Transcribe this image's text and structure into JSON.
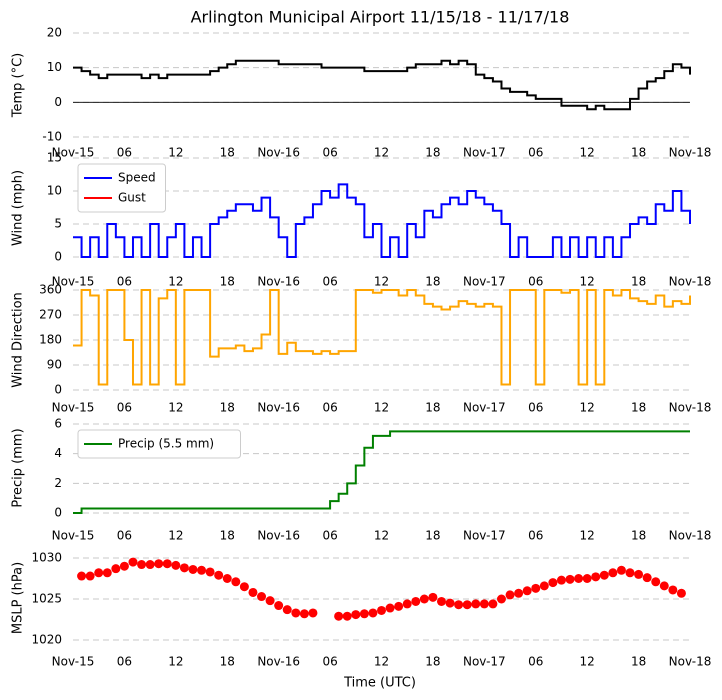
{
  "chart_data": [
    {
      "type": "line",
      "title": "Arlington Municipal Airport 11/15/18 - 11/17/18",
      "ylabel": "Temp (°C)",
      "drawstyle": "steps",
      "grid": true,
      "zero_line": true,
      "x": [
        0,
        1,
        2,
        3,
        4,
        5,
        6,
        7,
        8,
        9,
        10,
        11,
        12,
        13,
        14,
        15,
        16,
        17,
        18,
        19,
        20,
        21,
        22,
        23,
        24,
        25,
        26,
        27,
        28,
        29,
        30,
        31,
        32,
        33,
        34,
        35,
        36,
        37,
        38,
        39,
        40,
        41,
        42,
        43,
        44,
        45,
        46,
        47,
        48,
        49,
        50,
        51,
        52,
        53,
        54,
        55,
        56,
        57,
        58,
        59,
        60,
        61,
        62,
        63,
        64,
        65,
        66,
        67,
        68,
        69,
        70,
        71,
        72
      ],
      "series": [
        {
          "name": "Temp",
          "color": "#000000",
          "values": [
            10,
            9,
            8,
            7,
            8,
            8,
            8,
            8,
            7,
            8,
            7,
            8,
            8,
            8,
            8,
            8,
            9,
            10,
            11,
            12,
            12,
            12,
            12,
            12,
            11,
            11,
            11,
            11,
            11,
            10,
            10,
            10,
            10,
            10,
            9,
            9,
            9,
            9,
            9,
            10,
            11,
            11,
            11,
            12,
            11,
            12,
            11,
            8,
            7,
            6,
            4,
            3,
            3,
            2,
            1,
            1,
            1,
            -1,
            -1,
            -1,
            -2,
            -1,
            -2,
            -2,
            -2,
            1,
            4,
            6,
            7,
            9,
            11,
            10,
            8
          ]
        }
      ],
      "xlim": [
        0,
        72
      ],
      "xticks": [
        {
          "value": 0,
          "label": "Nov-15"
        },
        {
          "value": 6,
          "label": "06"
        },
        {
          "value": 12,
          "label": "12"
        },
        {
          "value": 18,
          "label": "18"
        },
        {
          "value": 24,
          "label": "Nov-16"
        },
        {
          "value": 30,
          "label": "06"
        },
        {
          "value": 36,
          "label": "12"
        },
        {
          "value": 42,
          "label": "18"
        },
        {
          "value": 48,
          "label": "Nov-17"
        },
        {
          "value": 54,
          "label": "06"
        },
        {
          "value": 60,
          "label": "12"
        },
        {
          "value": 66,
          "label": "18"
        },
        {
          "value": 72,
          "label": "Nov-18"
        }
      ],
      "ylim": [
        -10,
        20
      ],
      "yticks": [
        -10,
        0,
        10,
        20
      ]
    },
    {
      "type": "line",
      "ylabel": "Wind (mph)",
      "drawstyle": "steps",
      "grid": true,
      "legend": "upper left",
      "x": [
        0,
        1,
        2,
        3,
        4,
        5,
        6,
        7,
        8,
        9,
        10,
        11,
        12,
        13,
        14,
        15,
        16,
        17,
        18,
        19,
        20,
        21,
        22,
        23,
        24,
        25,
        26,
        27,
        28,
        29,
        30,
        31,
        32,
        33,
        34,
        35,
        36,
        37,
        38,
        39,
        40,
        41,
        42,
        43,
        44,
        45,
        46,
        47,
        48,
        49,
        50,
        51,
        52,
        53,
        54,
        55,
        56,
        57,
        58,
        59,
        60,
        61,
        62,
        63,
        64,
        65,
        66,
        67,
        68,
        69,
        70,
        71,
        72
      ],
      "series": [
        {
          "name": "Speed",
          "color": "#0000ff",
          "values": [
            3,
            0,
            3,
            0,
            5,
            3,
            0,
            3,
            0,
            5,
            0,
            3,
            5,
            0,
            3,
            0,
            5,
            6,
            7,
            8,
            8,
            7,
            9,
            6,
            3,
            0,
            5,
            6,
            8,
            10,
            9,
            11,
            9,
            8,
            3,
            5,
            0,
            3,
            0,
            5,
            3,
            7,
            6,
            8,
            9,
            8,
            10,
            9,
            8,
            7,
            5,
            0,
            3,
            0,
            0,
            0,
            3,
            0,
            3,
            0,
            3,
            0,
            3,
            0,
            3,
            5,
            6,
            5,
            8,
            7,
            10,
            7,
            5
          ]
        },
        {
          "name": "Gust",
          "color": "#ff0000",
          "values": [
            null,
            null,
            null,
            null,
            null,
            null,
            null,
            null,
            null,
            null,
            null,
            null,
            null,
            null,
            null,
            null,
            null,
            null,
            null,
            null,
            null,
            null,
            null,
            null,
            null,
            null,
            null,
            null,
            null,
            null,
            null,
            null,
            null,
            null,
            null,
            null,
            null,
            null,
            null,
            null,
            null,
            null,
            null,
            null,
            null,
            null,
            null,
            null,
            null,
            null,
            null,
            null,
            null,
            null,
            null,
            null,
            null,
            null,
            null,
            null,
            null,
            null,
            null,
            null,
            null,
            null,
            null,
            null,
            null,
            null,
            null,
            null,
            null
          ]
        }
      ],
      "xlim": [
        0,
        72
      ],
      "xticks": [
        {
          "value": 0,
          "label": "Nov-15"
        },
        {
          "value": 6,
          "label": "06"
        },
        {
          "value": 12,
          "label": "12"
        },
        {
          "value": 18,
          "label": "18"
        },
        {
          "value": 24,
          "label": "Nov-16"
        },
        {
          "value": 30,
          "label": "06"
        },
        {
          "value": 36,
          "label": "12"
        },
        {
          "value": 42,
          "label": "18"
        },
        {
          "value": 48,
          "label": "Nov-17"
        },
        {
          "value": 54,
          "label": "06"
        },
        {
          "value": 60,
          "label": "12"
        },
        {
          "value": 66,
          "label": "18"
        },
        {
          "value": 72,
          "label": "Nov-18"
        }
      ],
      "ylim": [
        0,
        15
      ],
      "yticks": [
        0,
        5,
        10,
        15
      ]
    },
    {
      "type": "line",
      "ylabel": "Wind Direction",
      "drawstyle": "steps",
      "grid": true,
      "x": [
        0,
        1,
        2,
        3,
        4,
        5,
        6,
        7,
        8,
        9,
        10,
        11,
        12,
        13,
        14,
        15,
        16,
        17,
        18,
        19,
        20,
        21,
        22,
        23,
        24,
        25,
        26,
        27,
        28,
        29,
        30,
        31,
        32,
        33,
        34,
        35,
        36,
        37,
        38,
        39,
        40,
        41,
        42,
        43,
        44,
        45,
        46,
        47,
        48,
        49,
        50,
        51,
        52,
        53,
        54,
        55,
        56,
        57,
        58,
        59,
        60,
        61,
        62,
        63,
        64,
        65,
        66,
        67,
        68,
        69,
        70,
        71,
        72
      ],
      "series": [
        {
          "name": "Direction",
          "color": "#ffa500",
          "values": [
            160,
            360,
            340,
            20,
            360,
            360,
            180,
            20,
            360,
            20,
            330,
            360,
            20,
            360,
            360,
            360,
            120,
            150,
            150,
            160,
            140,
            150,
            200,
            360,
            130,
            170,
            140,
            140,
            130,
            140,
            130,
            140,
            140,
            360,
            360,
            350,
            360,
            360,
            340,
            360,
            340,
            310,
            300,
            290,
            300,
            320,
            310,
            300,
            310,
            300,
            20,
            360,
            360,
            360,
            20,
            360,
            360,
            350,
            360,
            20,
            360,
            20,
            360,
            340,
            360,
            330,
            320,
            310,
            340,
            300,
            320,
            310,
            340
          ]
        }
      ],
      "xlim": [
        0,
        72
      ],
      "xticks": [
        {
          "value": 0,
          "label": "Nov-15"
        },
        {
          "value": 6,
          "label": "06"
        },
        {
          "value": 12,
          "label": "12"
        },
        {
          "value": 18,
          "label": "18"
        },
        {
          "value": 24,
          "label": "Nov-16"
        },
        {
          "value": 30,
          "label": "06"
        },
        {
          "value": 36,
          "label": "12"
        },
        {
          "value": 42,
          "label": "18"
        },
        {
          "value": 48,
          "label": "Nov-17"
        },
        {
          "value": 54,
          "label": "06"
        },
        {
          "value": 60,
          "label": "12"
        },
        {
          "value": 66,
          "label": "18"
        },
        {
          "value": 72,
          "label": "Nov-18"
        }
      ],
      "ylim": [
        0,
        360
      ],
      "yticks": [
        0,
        90,
        180,
        270,
        360
      ]
    },
    {
      "type": "line",
      "ylabel": "Precip (mm)",
      "drawstyle": "steps",
      "grid": true,
      "legend": "upper left",
      "x": [
        0,
        1,
        2,
        3,
        4,
        5,
        6,
        7,
        8,
        9,
        10,
        11,
        12,
        13,
        14,
        15,
        16,
        17,
        18,
        19,
        20,
        21,
        22,
        23,
        24,
        25,
        26,
        27,
        28,
        29,
        30,
        31,
        32,
        33,
        34,
        35,
        36,
        37,
        38,
        39,
        40,
        41,
        42,
        43,
        44,
        45,
        46,
        47,
        48,
        49,
        50,
        51,
        52,
        53,
        54,
        55,
        56,
        57,
        58,
        59,
        60,
        61,
        62,
        63,
        64,
        65,
        66,
        67,
        68,
        69,
        70,
        71,
        72
      ],
      "series": [
        {
          "name": "Precip (5.5 mm)",
          "color": "#008000",
          "values": [
            0,
            0.3,
            0.3,
            0.3,
            0.3,
            0.3,
            0.3,
            0.3,
            0.3,
            0.3,
            0.3,
            0.3,
            0.3,
            0.3,
            0.3,
            0.3,
            0.3,
            0.3,
            0.3,
            0.3,
            0.3,
            0.3,
            0.3,
            0.3,
            0.3,
            0.3,
            0.3,
            0.3,
            0.3,
            0.3,
            0.8,
            1.3,
            2.0,
            3.2,
            4.4,
            5.2,
            5.2,
            5.5,
            5.5,
            5.5,
            5.5,
            5.5,
            5.5,
            5.5,
            5.5,
            5.5,
            5.5,
            5.5,
            5.5,
            5.5,
            5.5,
            5.5,
            5.5,
            5.5,
            5.5,
            5.5,
            5.5,
            5.5,
            5.5,
            5.5,
            5.5,
            5.5,
            5.5,
            5.5,
            5.5,
            5.5,
            5.5,
            5.5,
            5.5,
            5.5,
            5.5,
            5.5,
            5.5
          ]
        }
      ],
      "xlim": [
        0,
        72
      ],
      "xticks": [
        {
          "value": 0,
          "label": "Nov-15"
        },
        {
          "value": 6,
          "label": "06"
        },
        {
          "value": 12,
          "label": "12"
        },
        {
          "value": 18,
          "label": "18"
        },
        {
          "value": 24,
          "label": "Nov-16"
        },
        {
          "value": 30,
          "label": "06"
        },
        {
          "value": 36,
          "label": "12"
        },
        {
          "value": 42,
          "label": "18"
        },
        {
          "value": 48,
          "label": "Nov-17"
        },
        {
          "value": 54,
          "label": "06"
        },
        {
          "value": 60,
          "label": "12"
        },
        {
          "value": 66,
          "label": "18"
        },
        {
          "value": 72,
          "label": "Nov-18"
        }
      ],
      "ylim": [
        0,
        6
      ],
      "yticks": [
        0,
        2,
        4,
        6
      ]
    },
    {
      "type": "scatter",
      "ylabel": "MSLP (hPa)",
      "xlabel": "Time (UTC)",
      "grid": true,
      "x": [
        1,
        2,
        3,
        4,
        5,
        6,
        7,
        8,
        9,
        10,
        11,
        12,
        13,
        14,
        15,
        16,
        17,
        18,
        19,
        20,
        21,
        22,
        23,
        24,
        25,
        26,
        27,
        28,
        29,
        30,
        31,
        32,
        33,
        34,
        35,
        36,
        37,
        38,
        39,
        40,
        41,
        42,
        43,
        44,
        45,
        46,
        47,
        48,
        49,
        50,
        51,
        52,
        53,
        54,
        55,
        56,
        57,
        58,
        59,
        60,
        61,
        62,
        63,
        64,
        65,
        66,
        67,
        68,
        69,
        70,
        71
      ],
      "series": [
        {
          "name": "MSLP",
          "color": "#ff0000",
          "values": [
            1027.8,
            1027.8,
            1028.2,
            1028.2,
            1028.7,
            1029,
            1029.5,
            1029.2,
            1029.2,
            1029.3,
            1029.3,
            1029.1,
            1028.8,
            1028.6,
            1028.5,
            1028.3,
            1027.9,
            1027.5,
            1027.1,
            1026.5,
            1025.8,
            1025.3,
            1024.8,
            1024.2,
            1023.7,
            1023.3,
            1023.2,
            1023.3,
            null,
            null,
            1022.9,
            1022.9,
            1023.1,
            1023.2,
            1023.3,
            1023.6,
            1023.9,
            1024.1,
            1024.4,
            1024.7,
            1025,
            1025.2,
            1024.7,
            1024.5,
            1024.3,
            1024.3,
            1024.4,
            1024.4,
            1024.4,
            1025,
            1025.5,
            1025.7,
            1026,
            1026.3,
            1026.6,
            1027,
            1027.3,
            1027.4,
            1027.5,
            1027.5,
            1027.7,
            1027.9,
            1028.2,
            1028.5,
            1028.2,
            1028,
            1027.6,
            1027.1,
            1026.6,
            1026.1,
            1025.7
          ]
        }
      ],
      "xlim": [
        0,
        72
      ],
      "xticks": [
        {
          "value": 0,
          "label": "Nov-15"
        },
        {
          "value": 6,
          "label": "06"
        },
        {
          "value": 12,
          "label": "12"
        },
        {
          "value": 18,
          "label": "18"
        },
        {
          "value": 24,
          "label": "Nov-16"
        },
        {
          "value": 30,
          "label": "06"
        },
        {
          "value": 36,
          "label": "12"
        },
        {
          "value": 42,
          "label": "18"
        },
        {
          "value": 48,
          "label": "Nov-17"
        },
        {
          "value": 54,
          "label": "06"
        },
        {
          "value": 60,
          "label": "12"
        },
        {
          "value": 66,
          "label": "18"
        },
        {
          "value": 72,
          "label": "Nov-18"
        }
      ],
      "ylim": [
        1020,
        1030
      ],
      "yticks": [
        1020,
        1025,
        1030
      ]
    }
  ]
}
